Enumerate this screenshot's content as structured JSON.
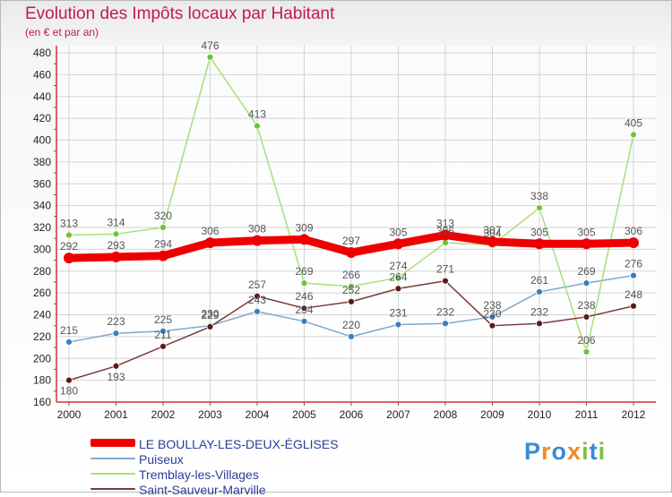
{
  "header": {
    "title": "Evolution des Impôts locaux par Habitant",
    "subtitle": "(en € et par an)"
  },
  "brand": {
    "text": "Proxiti",
    "letters": [
      "P",
      "r",
      "o",
      "x",
      "i",
      "t",
      "i"
    ],
    "colors": [
      "#3b8bd6",
      "#f08a24",
      "#3b8bd6",
      "#f08a24",
      "#7cc243",
      "#3b8bd6",
      "#7cc243"
    ]
  },
  "colors": {
    "title": "#c2185b",
    "axis": "#cc3333",
    "grid": "#d4d4d4",
    "label": "#555555",
    "legend_text": "#2a3d99"
  },
  "chart_data": {
    "type": "line",
    "title": "Evolution des Impôts locaux par Habitant",
    "subtitle": "(en € et par an)",
    "x": [
      2000,
      2001,
      2002,
      2003,
      2004,
      2005,
      2006,
      2007,
      2008,
      2009,
      2010,
      2011,
      2012
    ],
    "ylim": [
      160,
      480
    ],
    "yticks": [
      160,
      180,
      200,
      220,
      240,
      260,
      280,
      300,
      320,
      340,
      360,
      380,
      400,
      420,
      440,
      460,
      480
    ],
    "grid": true,
    "legend_position": "bottom-left",
    "series": [
      {
        "name": "LE BOULLAY-LES-DEUX-ÉGLISES",
        "color": "#ee0000",
        "marker": "#ee0000",
        "width": 9,
        "values": [
          292,
          293,
          294,
          306,
          308,
          309,
          297,
          305,
          313,
          307,
          305,
          305,
          306
        ],
        "labels": [
          "292",
          "293",
          "294",
          "306",
          "308",
          "309",
          "297",
          "305",
          "313",
          "307",
          "305",
          "305",
          "306"
        ]
      },
      {
        "name": "Puiseux",
        "color": "#7fa8cc",
        "marker": "#3a7fc0",
        "width": 1.5,
        "values": [
          215,
          223,
          225,
          230,
          243,
          234,
          220,
          231,
          232,
          238,
          261,
          269,
          276
        ],
        "labels": [
          "215",
          "223",
          "225",
          "230",
          "243",
          "234",
          "220",
          "231",
          "232",
          "238",
          "261",
          "269",
          "276"
        ]
      },
      {
        "name": "Tremblay-les-Villages",
        "color": "#a6e07a",
        "marker": "#6dc43a",
        "width": 1.5,
        "values": [
          313,
          314,
          320,
          476,
          413,
          269,
          266,
          274,
          306,
          304,
          338,
          206,
          405
        ],
        "labels": [
          "313",
          "314",
          "320",
          "476",
          "413",
          "269",
          "266",
          "274",
          "306",
          "304",
          "338",
          "206",
          "405"
        ]
      },
      {
        "name": "Saint-Sauveur-Marville",
        "color": "#7a3a3a",
        "marker": "#5a1a1a",
        "width": 1.5,
        "values": [
          180,
          193,
          211,
          229,
          257,
          246,
          252,
          264,
          271,
          230,
          232,
          238,
          248
        ],
        "labels": [
          "180",
          "193",
          "211",
          "229",
          "257",
          "246",
          "252",
          "264",
          "271",
          "230",
          "232",
          "238",
          "248"
        ]
      }
    ]
  }
}
